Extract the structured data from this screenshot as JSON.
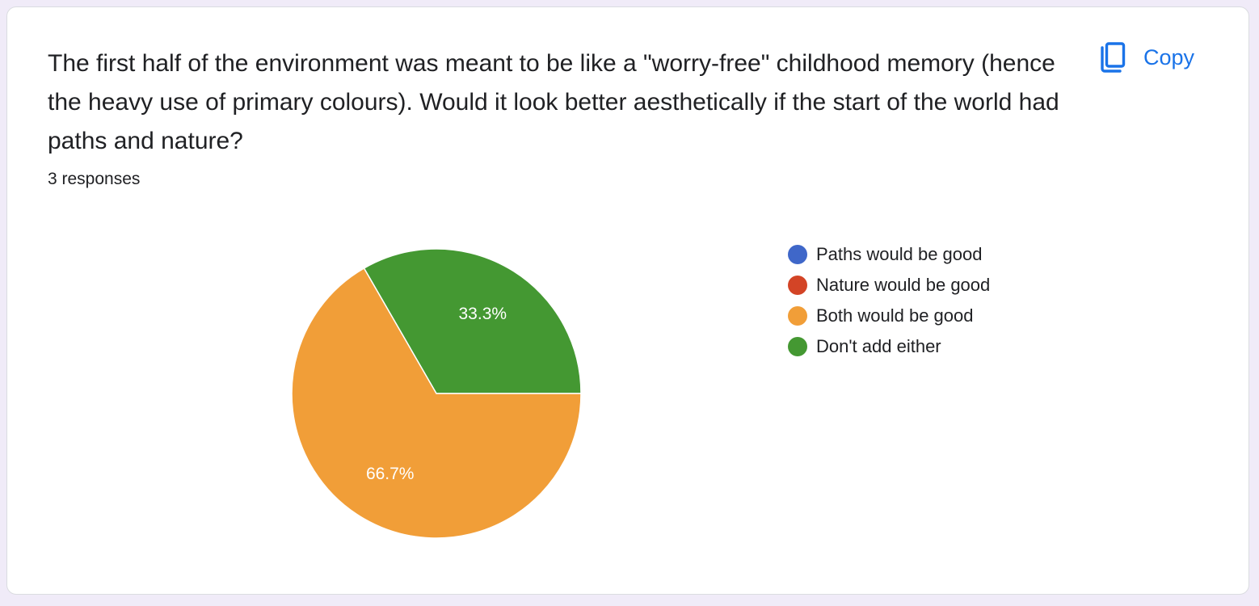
{
  "question": {
    "text": "The first half of the environment was meant to be like a \"worry-free\" childhood memory (hence the heavy use of primary colours). Would it look better aesthetically if the start of the world had paths and nature?",
    "responses_label": "3 responses"
  },
  "copy_button": {
    "label": "Copy",
    "icon": "copy-icon",
    "color": "#1a73e8"
  },
  "chart_data": {
    "type": "pie",
    "title": "",
    "legend_position": "right",
    "categories": [
      "Paths would be good",
      "Nature would be good",
      "Both would be good",
      "Don't add either"
    ],
    "values": [
      0,
      0,
      2,
      1
    ],
    "percent_labels": [
      "",
      "",
      "66.7%",
      "33.3%"
    ],
    "colors": [
      "#3f67c9",
      "#d34426",
      "#f19e38",
      "#449832"
    ]
  }
}
